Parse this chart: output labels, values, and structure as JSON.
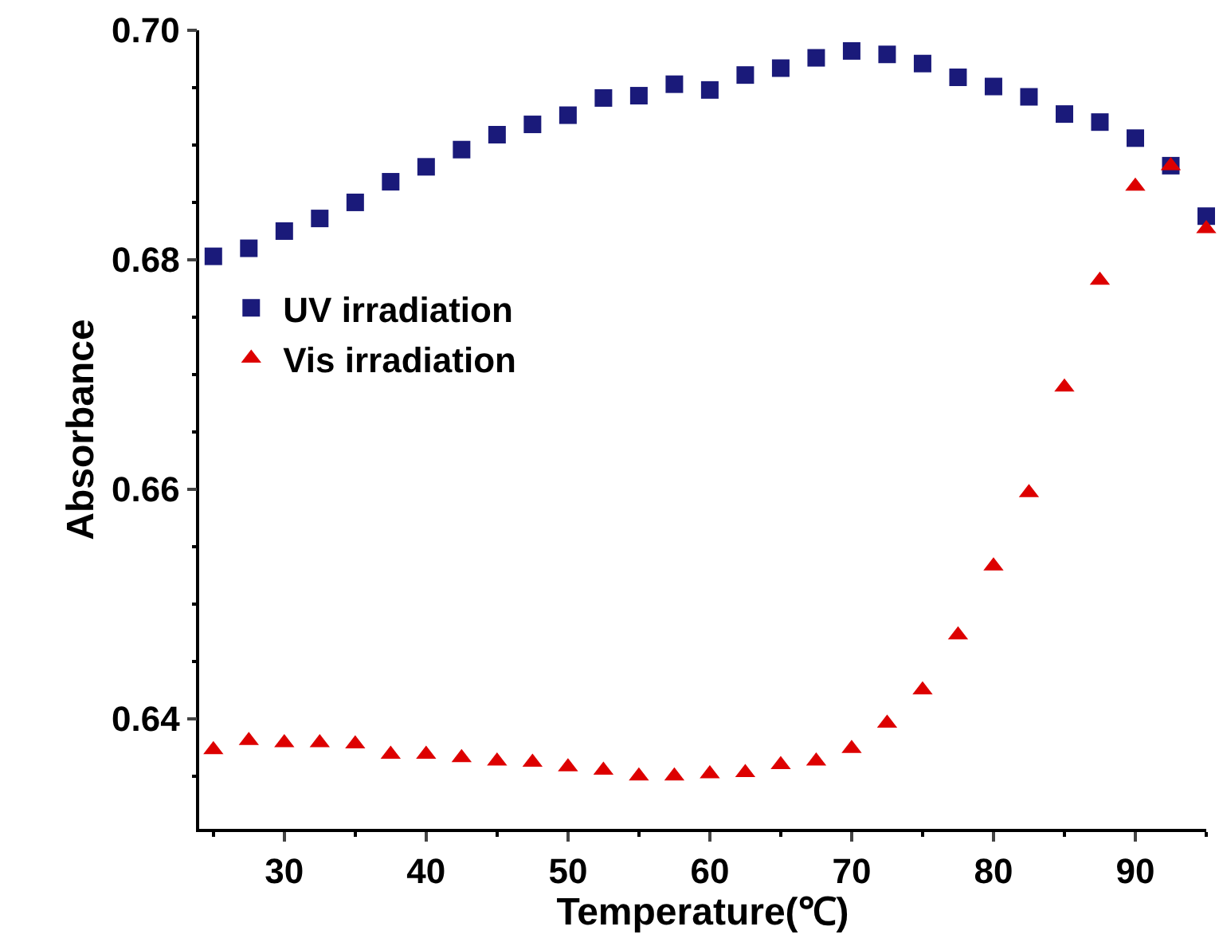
{
  "chart_data": {
    "type": "scatter",
    "xlabel": "Temperature(℃)",
    "ylabel": "Absorbance",
    "x": [
      25,
      27.5,
      30,
      32.5,
      35,
      37.5,
      40,
      42.5,
      45,
      47.5,
      50,
      52.5,
      55,
      57.5,
      60,
      62.5,
      65,
      67.5,
      70,
      72.5,
      75,
      77.5,
      80,
      82.5,
      85,
      87.5,
      90,
      92.5,
      95
    ],
    "series": [
      {
        "name": "UV irradiation",
        "color": "#1a1a7a",
        "marker": "square",
        "values": [
          0.6803,
          0.681,
          0.6825,
          0.6836,
          0.685,
          0.6868,
          0.6881,
          0.6896,
          0.6909,
          0.6918,
          0.6926,
          0.6941,
          0.6943,
          0.6953,
          0.6948,
          0.6961,
          0.6967,
          0.6976,
          0.6982,
          0.6979,
          0.6971,
          0.6959,
          0.6951,
          0.6942,
          0.6927,
          0.692,
          0.6906,
          0.6882,
          0.6838
        ]
      },
      {
        "name": "Vis irradiation",
        "color": "#dd0000",
        "marker": "triangle",
        "values": [
          0.6373,
          0.6381,
          0.6379,
          0.6379,
          0.6378,
          0.6369,
          0.6369,
          0.6366,
          0.6363,
          0.6362,
          0.6358,
          0.6355,
          0.635,
          0.635,
          0.6352,
          0.6353,
          0.636,
          0.6363,
          0.6374,
          0.6396,
          0.6425,
          0.6473,
          0.6533,
          0.6597,
          0.6689,
          0.6782,
          0.6864,
          0.6882,
          0.6827
        ]
      }
    ],
    "xlim": [
      24,
      95
    ],
    "xticks": [
      30,
      40,
      50,
      60,
      70,
      80,
      90
    ],
    "ylim": [
      0.6304,
      0.7
    ],
    "yticks": [
      {
        "value": 0.64,
        "label": "0.64"
      },
      {
        "value": 0.66,
        "label": "0.66"
      },
      {
        "value": 0.68,
        "label": "0.68"
      },
      {
        "value": 0.7,
        "label": "0.70"
      }
    ],
    "grid": false,
    "legend": "left"
  }
}
